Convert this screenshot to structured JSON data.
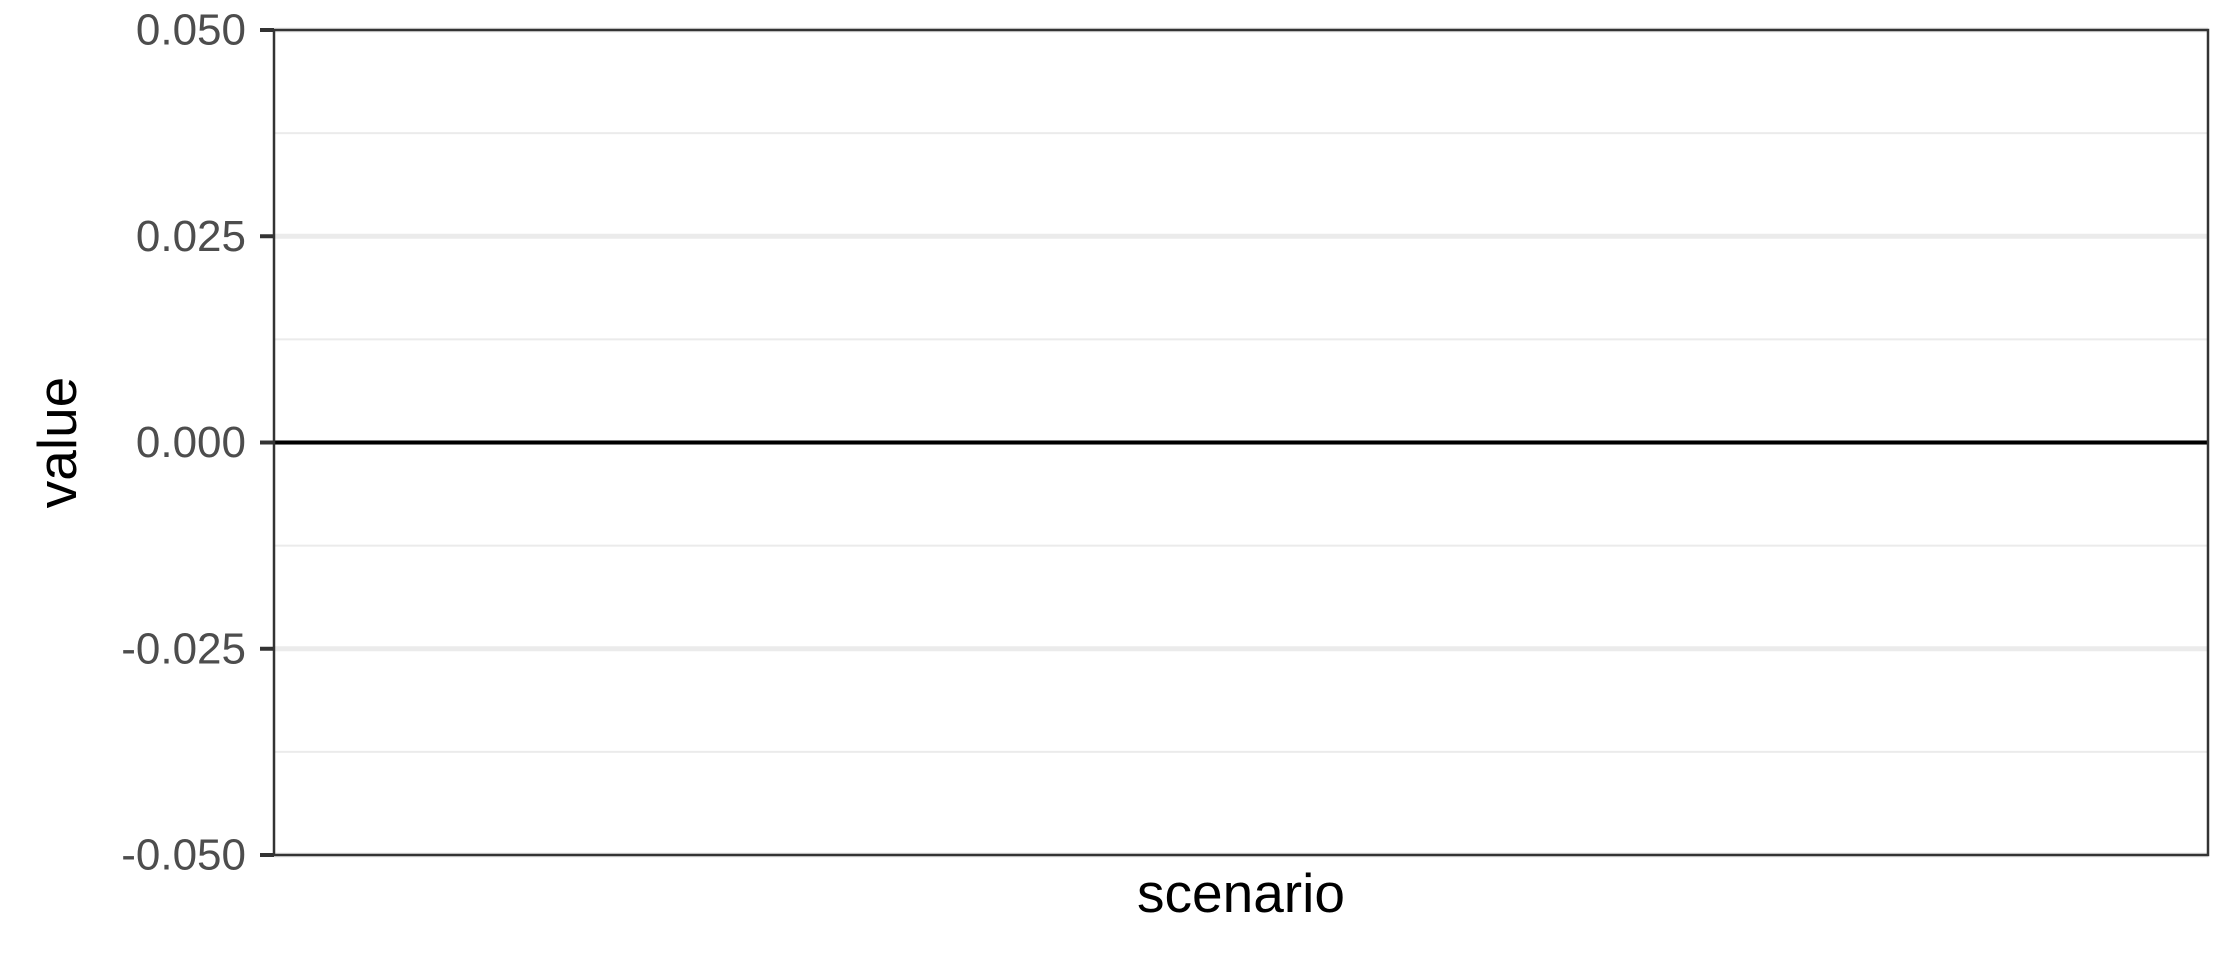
{
  "chart_data": {
    "type": "bar",
    "title": "",
    "xlabel": "scenario",
    "ylabel": "value",
    "categories": [],
    "series": [],
    "ylim": [
      -0.05,
      0.05
    ],
    "yticks": [
      -0.05,
      -0.025,
      0,
      0.025,
      0.05
    ],
    "ytick_labels": [
      "-0.050",
      "-0.025",
      "0.000",
      "0.025",
      "0.050"
    ],
    "reference_line_y": 0,
    "grid": true,
    "legend": "none",
    "colors": {
      "background": "#ffffff",
      "panel_border": "#333333",
      "grid_major": "#ebebeb",
      "grid_minor": "#ebebeb",
      "reference_line": "#000000",
      "tick_text": "#4d4d4d"
    }
  }
}
